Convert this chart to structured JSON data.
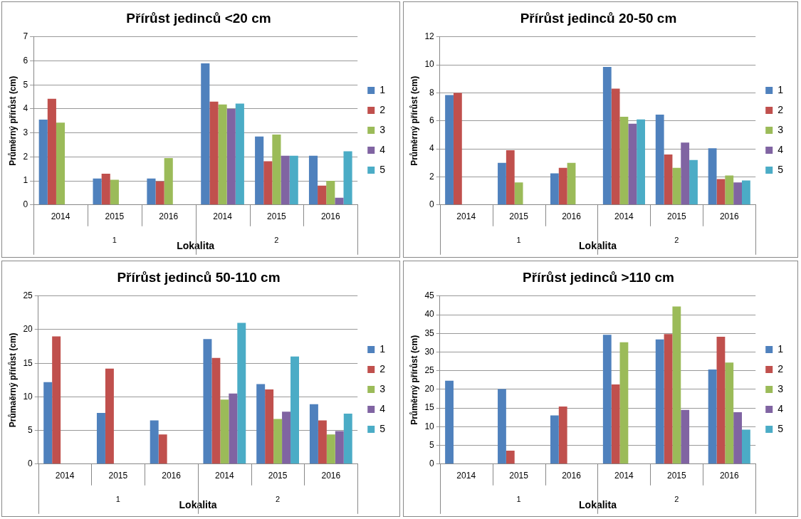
{
  "chart_data": [
    {
      "type": "bar",
      "title": "Přírůst jedinců <20 cm",
      "xlabel": "Lokalita",
      "ylabel": "Průměrný přírůst (cm)",
      "categories": [
        "2014",
        "2015",
        "2016",
        "2014",
        "2015",
        "2016"
      ],
      "annotations": [
        "1",
        "2"
      ],
      "ylim": [
        0,
        7
      ],
      "yticks": [
        0,
        1,
        2,
        3,
        4,
        5,
        6,
        7
      ],
      "grid": "y",
      "legend": "right",
      "series": [
        {
          "name": "1",
          "color": "#4f81bd",
          "values": [
            3.55,
            1.1,
            1.1,
            5.9,
            2.85,
            2.05
          ]
        },
        {
          "name": "2",
          "color": "#c0504d",
          "values": [
            4.42,
            1.3,
            0.98,
            4.3,
            1.82,
            0.8
          ]
        },
        {
          "name": "3",
          "color": "#9bbb59",
          "values": [
            3.43,
            1.05,
            1.95,
            4.18,
            2.93,
            1.0
          ]
        },
        {
          "name": "4",
          "color": "#8064a2",
          "values": [
            null,
            null,
            null,
            4.0,
            2.05,
            0.3
          ]
        },
        {
          "name": "5",
          "color": "#4bacc6",
          "values": [
            null,
            null,
            null,
            4.22,
            2.05,
            2.23
          ]
        }
      ]
    },
    {
      "type": "bar",
      "title": "Přírůst jedinců 20-50 cm",
      "xlabel": "Lokalita",
      "ylabel": "Průměrný přírůst (cm)",
      "categories": [
        "2014",
        "2015",
        "2016",
        "2014",
        "2015",
        "2016"
      ],
      "annotations": [
        "1",
        "2"
      ],
      "ylim": [
        0,
        12
      ],
      "yticks": [
        0,
        2,
        4,
        6,
        8,
        10,
        12
      ],
      "grid": "y",
      "legend": "right",
      "series": [
        {
          "name": "1",
          "color": "#4f81bd",
          "values": [
            7.85,
            3.0,
            2.25,
            9.85,
            6.45,
            4.05
          ]
        },
        {
          "name": "2",
          "color": "#c0504d",
          "values": [
            8.0,
            3.9,
            2.65,
            8.3,
            3.6,
            1.85
          ]
        },
        {
          "name": "3",
          "color": "#9bbb59",
          "values": [
            null,
            1.6,
            3.0,
            6.3,
            2.65,
            2.1
          ]
        },
        {
          "name": "4",
          "color": "#8064a2",
          "values": [
            null,
            null,
            null,
            5.8,
            4.45,
            1.6
          ]
        },
        {
          "name": "5",
          "color": "#4bacc6",
          "values": [
            null,
            null,
            null,
            6.1,
            3.2,
            1.75
          ]
        }
      ]
    },
    {
      "type": "bar",
      "title": "Přírůst jedinců 50-110 cm",
      "xlabel": "Lokalita",
      "ylabel": "Průmaěrný přírůst (cm)",
      "categories": [
        "2014",
        "2015",
        "2016",
        "2014",
        "2015",
        "2016"
      ],
      "annotations": [
        "1",
        "2"
      ],
      "ylim": [
        0,
        25
      ],
      "yticks": [
        0,
        5,
        10,
        15,
        20,
        25
      ],
      "grid": "y",
      "legend": "right",
      "series": [
        {
          "name": "1",
          "color": "#4f81bd",
          "values": [
            12.2,
            7.6,
            6.5,
            18.6,
            11.9,
            8.9
          ]
        },
        {
          "name": "2",
          "color": "#c0504d",
          "values": [
            19.0,
            14.2,
            4.4,
            15.8,
            11.1,
            6.5
          ]
        },
        {
          "name": "3",
          "color": "#9bbb59",
          "values": [
            null,
            null,
            null,
            9.6,
            6.7,
            4.4
          ]
        },
        {
          "name": "4",
          "color": "#8064a2",
          "values": [
            null,
            null,
            null,
            10.5,
            7.8,
            4.9
          ]
        },
        {
          "name": "5",
          "color": "#4bacc6",
          "values": [
            null,
            null,
            null,
            21.0,
            16.0,
            7.5
          ]
        }
      ]
    },
    {
      "type": "bar",
      "title": "Přírůst jedinců >110 cm",
      "xlabel": "Lokalita",
      "ylabel": "Průměrný přírůst (cm)",
      "categories": [
        "2014",
        "2015",
        "2016",
        "2014",
        "2015",
        "2016"
      ],
      "annotations": [
        "1",
        "2"
      ],
      "ylim": [
        0,
        45
      ],
      "yticks": [
        0,
        5,
        10,
        15,
        20,
        25,
        30,
        35,
        40,
        45
      ],
      "grid": "y",
      "legend": "right",
      "series": [
        {
          "name": "1",
          "color": "#4f81bd",
          "values": [
            22.3,
            20.1,
            13.0,
            34.6,
            33.4,
            25.3
          ]
        },
        {
          "name": "2",
          "color": "#c0504d",
          "values": [
            null,
            3.6,
            15.4,
            21.3,
            34.8,
            34.1
          ]
        },
        {
          "name": "3",
          "color": "#9bbb59",
          "values": [
            null,
            null,
            null,
            32.6,
            42.2,
            27.2
          ]
        },
        {
          "name": "4",
          "color": "#8064a2",
          "values": [
            null,
            null,
            null,
            null,
            14.5,
            13.9
          ]
        },
        {
          "name": "5",
          "color": "#4bacc6",
          "values": [
            null,
            null,
            null,
            null,
            null,
            9.2
          ]
        }
      ]
    }
  ]
}
